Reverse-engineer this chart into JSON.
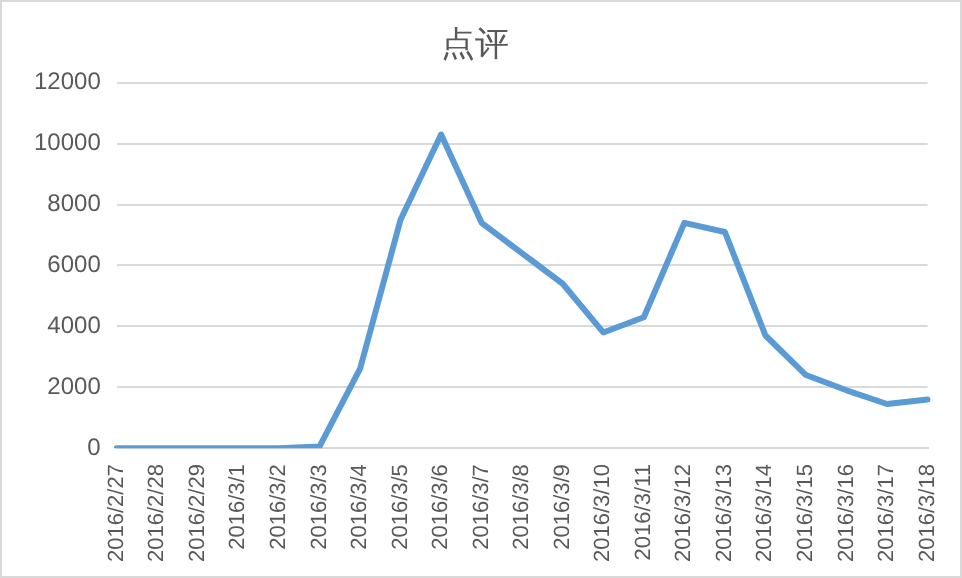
{
  "chart_data": {
    "type": "line",
    "title": "点评",
    "categories": [
      "2016/2/27",
      "2016/2/28",
      "2016/2/29",
      "2016/3/1",
      "2016/3/2",
      "2016/3/3",
      "2016/3/4",
      "2016/3/5",
      "2016/3/6",
      "2016/3/7",
      "2016/3/8",
      "2016/3/9",
      "2016/3/10",
      "2016/3/11",
      "2016/3/12",
      "2016/3/13",
      "2016/3/14",
      "2016/3/15",
      "2016/3/16",
      "2016/3/17",
      "2016/3/18"
    ],
    "series": [
      {
        "color": "#5b9bd5",
        "values": [
          0,
          0,
          0,
          0,
          0,
          50,
          2600,
          7500,
          10300,
          7400,
          6400,
          5400,
          3800,
          4300,
          7400,
          7100,
          3700,
          2400,
          1900,
          1450,
          1600
        ]
      }
    ],
    "ylim": [
      0,
      12000
    ],
    "yticks": [
      0,
      2000,
      4000,
      6000,
      8000,
      10000,
      12000
    ],
    "grid": "y",
    "legend": false,
    "marker": "none",
    "line_style": "solid"
  }
}
